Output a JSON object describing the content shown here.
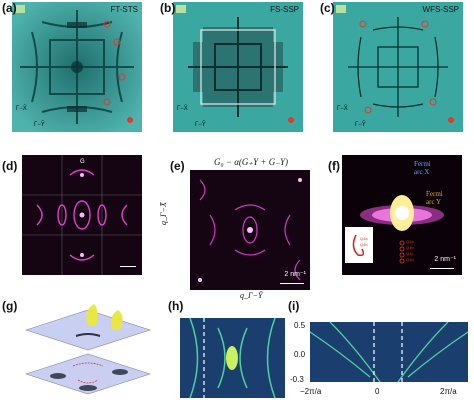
{
  "panels": {
    "a": {
      "label": "(a)",
      "title": "FT-STS",
      "axis_v": "Γ−X̄",
      "axis_h": "Γ−Ȳ"
    },
    "b": {
      "label": "(b)",
      "title": "FS-SSP",
      "axis_v": "Γ−X̄",
      "axis_h": "Γ−Ȳ"
    },
    "c": {
      "label": "(c)",
      "title": "WFS-SSP",
      "axis_v": "Γ−X̄",
      "axis_h": "Γ−Ȳ"
    },
    "d": {
      "label": "(d)",
      "q_label": "G",
      "scale_bar": ""
    },
    "e": {
      "label": "(e)",
      "formula": "G₀ − α(G₊Y + G₋Y)",
      "ylabel": "q_Γ−X̄",
      "xlabel": "q_Γ−Ȳ",
      "scale_bar": "2 nm⁻¹"
    },
    "f": {
      "label": "(f)",
      "fermi_x_1": "Fermi",
      "fermi_x_2": "arc X",
      "fermi_y_1": "Fermi",
      "fermi_y_2": "arc Y",
      "scale_bar": "2 nm⁻¹",
      "q_tags": [
        "Q1a",
        "Q1b",
        "Q1c",
        "Q1d"
      ],
      "inset_tags": [
        "Q4a",
        "Q4b"
      ]
    },
    "g": {
      "label": "(g)"
    },
    "h": {
      "label": "(h)"
    },
    "i": {
      "label": "(i)",
      "y_ticks": [
        "0.5",
        "0.0",
        "-0.3"
      ],
      "x_ticks": [
        "−2π/a",
        "0",
        "2π/a"
      ]
    }
  },
  "colors": {
    "teal": "#2b8a86",
    "magenta": "#e040d0",
    "ssp_bg": "#3aa7a0",
    "band_bg": "#1a3f6e",
    "red_marker": "#e03a2e"
  }
}
